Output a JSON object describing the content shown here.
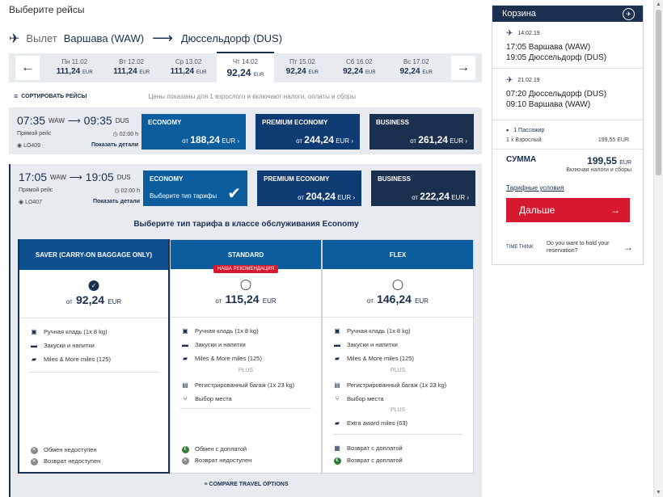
{
  "page_title": "Выберите рейсы",
  "route": {
    "direction_label": "Вылет",
    "from": "Варшава (WAW)",
    "to": "Дюссельдорф (DUS)"
  },
  "dates": [
    {
      "day": "Пн 11.02",
      "price": "111,24",
      "cur": "EUR"
    },
    {
      "day": "Вт 12.02",
      "price": "111,24",
      "cur": "EUR"
    },
    {
      "day": "Ср 13.02",
      "price": "111,24",
      "cur": "EUR"
    },
    {
      "day": "Чт 14.02",
      "price": "92,24",
      "cur": "EUR",
      "active": true
    },
    {
      "day": "Пт 15.02",
      "price": "92,24",
      "cur": "EUR"
    },
    {
      "day": "Сб 16.02",
      "price": "92,24",
      "cur": "EUR"
    },
    {
      "day": "Вс 17.02",
      "price": "92,24",
      "cur": "EUR"
    }
  ],
  "sort": {
    "label": "СОРТИРОВАТЬ РЕЙСЫ",
    "note": "Цены показаны для 1 взрослого и включают налоги, оплаты и сборы"
  },
  "flights": [
    {
      "dep_time": "07:35",
      "dep_code": "WAW",
      "arr_time": "09:35",
      "arr_code": "DUS",
      "type": "Прямой рейс",
      "duration": "02:00 h",
      "number": "LO409",
      "details": "Показать детали",
      "fares": [
        {
          "name": "ECONOMY",
          "from": "от",
          "price": "188,24",
          "cur": "EUR"
        },
        {
          "name": "PREMIUM ECONOMY",
          "from": "от",
          "price": "244,24",
          "cur": "EUR"
        },
        {
          "name": "BUSINESS",
          "from": "от",
          "price": "261,24",
          "cur": "EUR"
        }
      ]
    },
    {
      "dep_time": "17:05",
      "dep_code": "WAW",
      "arr_time": "19:05",
      "arr_code": "DUS",
      "type": "Прямой рейс",
      "duration": "02:00 h",
      "number": "LO407",
      "details": "Показать детали",
      "fares": [
        {
          "name": "ECONOMY",
          "select": "Выберите тип тарифы"
        },
        {
          "name": "PREMIUM ECONOMY",
          "from": "от",
          "price": "204,24",
          "cur": "EUR"
        },
        {
          "name": "BUSINESS",
          "from": "от",
          "price": "222,24",
          "cur": "EUR"
        }
      ]
    }
  ],
  "choose_title": "Выберите тип тарифа в классе обслуживания Economy",
  "plus_label": "PLUS",
  "cards": [
    {
      "name": "SAVER (CARRY-ON BAGGAGE ONLY)",
      "from": "от",
      "price": "92,24",
      "cur": "EUR",
      "features": [
        "Ручная кладь (1x 8 kg)",
        "Закуски и напитки",
        "Miles & More miles (125)"
      ],
      "rules": [
        "Обмен недоступен",
        "Возврат недоступен"
      ]
    },
    {
      "name": "STANDARD",
      "badge": "НАША РЕКОМЕНДАЦИЯ",
      "from": "от",
      "price": "115,24",
      "cur": "EUR",
      "features": [
        "Ручная кладь (1x 8 kg)",
        "Закуски и напитки",
        "Miles & More miles (125)"
      ],
      "plus": [
        "Регистрированный багаж (1x 23 kg)",
        "Выбор места"
      ],
      "rules": [
        "Обмен с доплатой",
        "Возврат недоступен"
      ]
    },
    {
      "name": "FLEX",
      "from": "от",
      "price": "146,24",
      "cur": "EUR",
      "features": [
        "Ручная кладь (1x 8 kg)",
        "Закуски и напитки",
        "Miles & More miles (125)"
      ],
      "plus": [
        "Регистрированный багаж (1x 23 kg)",
        "Выбор места"
      ],
      "plus2": [
        "Extra award miles (63)"
      ],
      "rules": [
        "Возврат с доплатой",
        "Возврат с доплатой"
      ]
    }
  ],
  "compare_label": "COMPARE TRAVEL OPTIONS",
  "cart": {
    "title": "Корзина",
    "segments": [
      {
        "date": "14.02.19",
        "line1": "17:05 Варшава (WAW)",
        "line2": "19:05 Дюссельдорф (DUS)"
      },
      {
        "date": "21.02.19",
        "line1": "07:20 Дюссельдорф (DUS)",
        "line2": "09:10 Варшава (WAW)"
      }
    ],
    "pax_label": "1 Пассажир",
    "pax_type": "1 x Взрослый",
    "pax_price": "199,55 EUR",
    "sum_label": "СУММА",
    "sum_value": "199,55",
    "sum_cur": "EUR",
    "sum_note": "Включая налоги и сборы",
    "tariff_link": "Тарифные условия",
    "next_label": "Дальше",
    "ttt_logo": "TIME THINK",
    "ttt_text": "Do you want to hold your reservation?"
  }
}
